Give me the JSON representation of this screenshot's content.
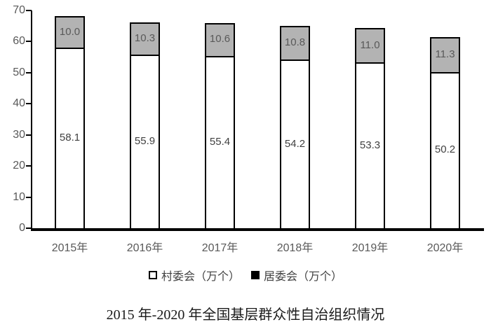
{
  "chart_data": {
    "type": "bar",
    "stacked": true,
    "title": "2015 年-2020 年全国基层群众性自治组织情况",
    "categories": [
      "2015年",
      "2016年",
      "2017年",
      "2018年",
      "2019年",
      "2020年"
    ],
    "series": [
      {
        "name": "村委会（万个）",
        "values": [
          58.1,
          55.9,
          55.4,
          54.2,
          53.3,
          50.2
        ],
        "fill": "#ffffff",
        "label_color": "#404040",
        "legend_marker_fill": "#ffffff"
      },
      {
        "name": "居委会（万个）",
        "values": [
          10.0,
          10.3,
          10.6,
          10.8,
          11.0,
          11.3
        ],
        "fill": "#b3b3b3",
        "label_color": "#595959",
        "legend_marker_fill": "#000000"
      }
    ],
    "ylim": [
      0,
      70
    ],
    "yticks": [
      0,
      10,
      20,
      30,
      40,
      50,
      60,
      70
    ],
    "grid": false,
    "legend_position": "bottom",
    "axis_color": "#000000",
    "bar_border_color": "#000000",
    "tick_label_color": "#595959"
  }
}
